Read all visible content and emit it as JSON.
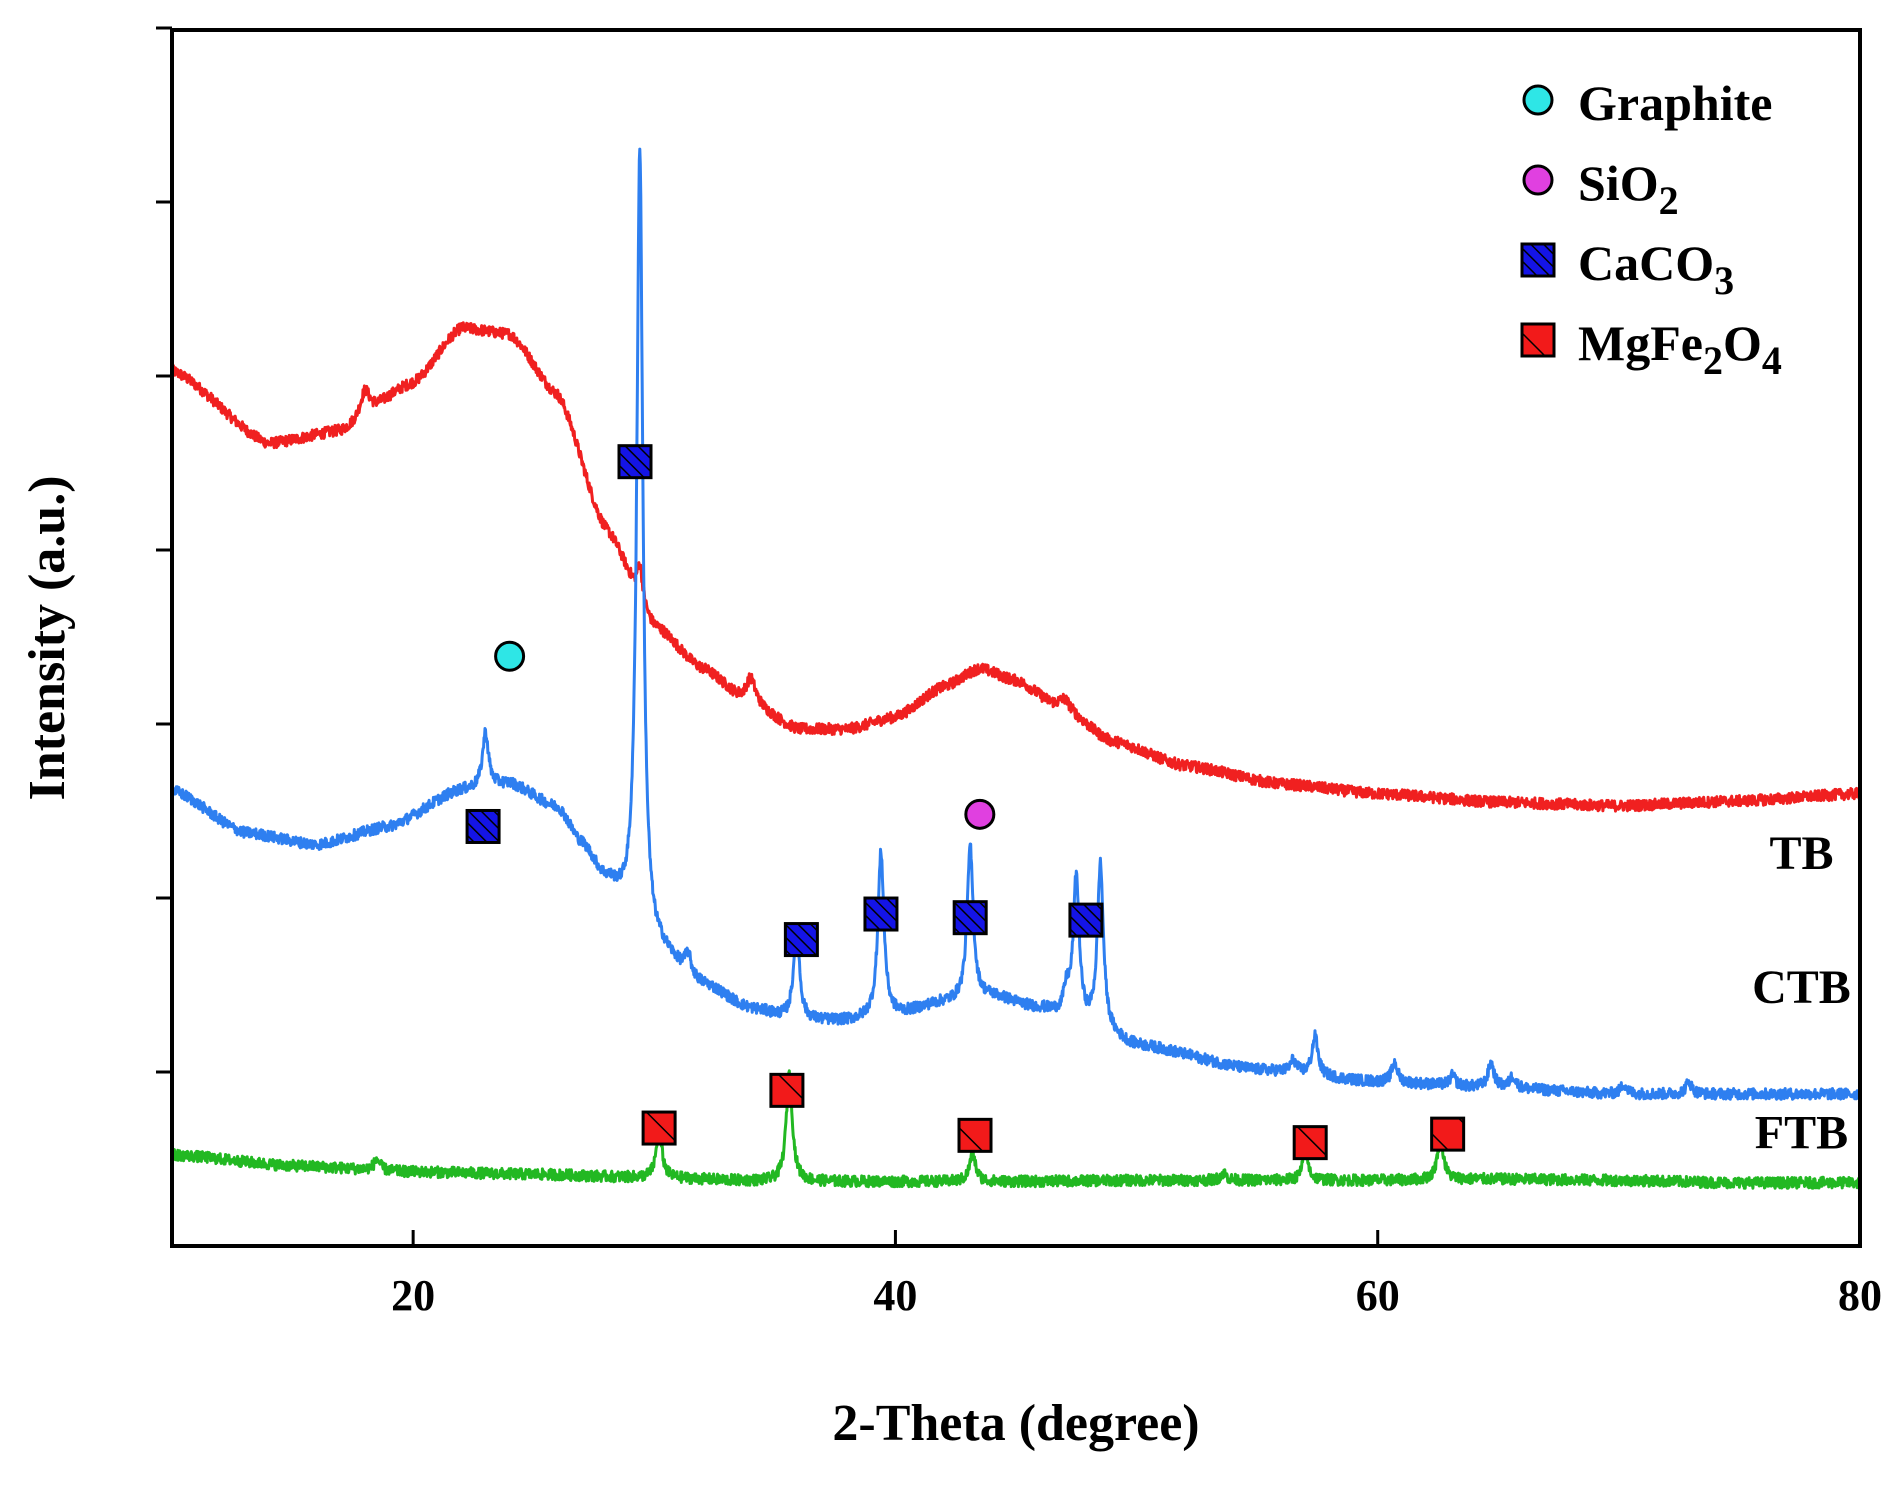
{
  "chart_data": {
    "type": "line",
    "title": "",
    "xlabel": "2-Theta (degree)",
    "ylabel": "Intensity (a.u.)",
    "xlim": [
      10,
      80
    ],
    "ylim": [
      0,
      100
    ],
    "x_ticks": [
      20,
      40,
      60,
      80
    ],
    "y_ticks_labeled": false,
    "grid": false,
    "legend_position": "top-right",
    "legend": [
      {
        "name": "Graphite",
        "marker": "circle",
        "color": "#2EE6E6",
        "sub": "",
        "pre": "Graphite",
        "mid": "",
        "post": ""
      },
      {
        "name": "SiO2",
        "marker": "circle",
        "color": "#E040E0",
        "pre": "SiO",
        "sub1": "2",
        "mid": "",
        "sub2": ""
      },
      {
        "name": "CaCO3",
        "marker": "hatched-square",
        "color": "#1414E6",
        "pre": "CaCO",
        "sub1": "3",
        "mid": "",
        "sub2": ""
      },
      {
        "name": "MgFe2O4",
        "marker": "hatched-square",
        "color": "#E61414",
        "pre": "MgFe",
        "sub1": "2",
        "mid": "O",
        "sub2": "4"
      }
    ],
    "series": [
      {
        "name": "TB",
        "color": "#F02020",
        "baseline": [
          [
            10,
            72
          ],
          [
            14,
            66
          ],
          [
            17,
            67
          ],
          [
            20,
            71
          ],
          [
            22,
            75.5
          ],
          [
            24,
            75
          ],
          [
            26,
            70
          ],
          [
            28,
            59
          ],
          [
            30,
            51
          ],
          [
            32,
            47.5
          ],
          [
            34,
            44.5
          ],
          [
            36,
            42.5
          ],
          [
            38,
            42.5
          ],
          [
            40,
            43.5
          ],
          [
            42,
            46
          ],
          [
            43.5,
            47.5
          ],
          [
            45,
            46.5
          ],
          [
            47,
            44
          ],
          [
            49,
            41.5
          ],
          [
            52,
            39.5
          ],
          [
            56,
            38
          ],
          [
            60,
            37.2
          ],
          [
            65,
            36.5
          ],
          [
            70,
            36.2
          ],
          [
            75,
            36.6
          ],
          [
            80,
            37.2
          ]
        ],
        "peaks": [
          [
            18,
            2.2,
            0.25
          ],
          [
            34,
            2.2,
            0.25
          ],
          [
            29.4,
            3.0,
            0.15
          ],
          [
            47,
            1.0,
            0.3
          ]
        ]
      },
      {
        "name": "CTB",
        "color": "#2E7FF0",
        "baseline": [
          [
            10,
            37.5
          ],
          [
            13,
            34
          ],
          [
            16,
            33
          ],
          [
            19,
            34.5
          ],
          [
            22,
            37.5
          ],
          [
            24,
            38
          ],
          [
            26,
            36
          ],
          [
            27,
            33
          ],
          [
            28,
            30
          ],
          [
            29,
            27.5
          ],
          [
            30,
            24.5
          ],
          [
            32,
            21.5
          ],
          [
            34,
            19.5
          ],
          [
            36,
            18.5
          ],
          [
            38,
            18.5
          ],
          [
            40,
            19
          ],
          [
            42,
            20
          ],
          [
            44,
            20.5
          ],
          [
            46,
            19.5
          ],
          [
            48,
            18
          ],
          [
            50,
            16.5
          ],
          [
            55,
            14.5
          ],
          [
            60,
            13.5
          ],
          [
            65,
            13
          ],
          [
            70,
            12.5
          ],
          [
            75,
            12.5
          ],
          [
            80,
            12.5
          ]
        ],
        "peaks": [
          [
            23.0,
            4.5,
            0.15
          ],
          [
            29.4,
            64,
            0.15
          ],
          [
            31.4,
            1.6,
            0.15
          ],
          [
            35.9,
            7.5,
            0.15
          ],
          [
            39.4,
            13.5,
            0.15
          ],
          [
            43.1,
            12.5,
            0.15
          ],
          [
            47.5,
            11.8,
            0.15
          ],
          [
            48.5,
            13.5,
            0.15
          ],
          [
            47.1,
            2.0,
            0.15
          ],
          [
            56.5,
            1.0,
            0.15
          ],
          [
            57.4,
            3.2,
            0.15
          ],
          [
            60.7,
            1.6,
            0.15
          ],
          [
            63.1,
            0.8,
            0.15
          ],
          [
            64.7,
            2.0,
            0.15
          ],
          [
            65.6,
            1.0,
            0.15
          ],
          [
            70.2,
            0.8,
            0.15
          ],
          [
            72.9,
            1.0,
            0.15
          ]
        ]
      },
      {
        "name": "FTB",
        "color": "#22B822",
        "baseline": [
          [
            10,
            7.5
          ],
          [
            15,
            6.6
          ],
          [
            20,
            6.1
          ],
          [
            25,
            5.9
          ],
          [
            30,
            5.6
          ],
          [
            35,
            5.3
          ],
          [
            40,
            5.3
          ],
          [
            45,
            5.3
          ],
          [
            50,
            5.4
          ],
          [
            55,
            5.4
          ],
          [
            60,
            5.4
          ],
          [
            65,
            5.5
          ],
          [
            70,
            5.4
          ],
          [
            75,
            5.2
          ],
          [
            80,
            5.2
          ]
        ],
        "peaks": [
          [
            18.5,
            0.9,
            0.15
          ],
          [
            30.2,
            3.8,
            0.15
          ],
          [
            35.6,
            9.0,
            0.15
          ],
          [
            43.2,
            2.3,
            0.15
          ],
          [
            53.6,
            0.6,
            0.15
          ],
          [
            57.0,
            2.2,
            0.15
          ],
          [
            62.6,
            3.5,
            0.15
          ]
        ]
      }
    ],
    "series_labels": [
      {
        "series": "TB",
        "text": "TB",
        "x": 75.5,
        "y": 31
      },
      {
        "series": "CTB",
        "text": "CTB",
        "x": 75.5,
        "y": 20
      },
      {
        "series": "FTB",
        "text": "FTB",
        "x": 75.5,
        "y": 8
      }
    ],
    "phase_markers": [
      {
        "phase": "Graphite",
        "x": 24.0,
        "y": 48.5
      },
      {
        "phase": "SiO2",
        "x": 43.5,
        "y": 35.5
      },
      {
        "phase": "CaCO3",
        "x": 29.2,
        "y": 64.5
      },
      {
        "phase": "CaCO3",
        "x": 22.9,
        "y": 34.5
      },
      {
        "phase": "CaCO3",
        "x": 36.1,
        "y": 25.2
      },
      {
        "phase": "CaCO3",
        "x": 39.4,
        "y": 27.3
      },
      {
        "phase": "CaCO3",
        "x": 43.1,
        "y": 27.0
      },
      {
        "phase": "CaCO3",
        "x": 47.9,
        "y": 26.8
      },
      {
        "phase": "MgFe2O4",
        "x": 30.2,
        "y": 9.7
      },
      {
        "phase": "MgFe2O4",
        "x": 35.5,
        "y": 12.8
      },
      {
        "phase": "MgFe2O4",
        "x": 43.3,
        "y": 9.1
      },
      {
        "phase": "MgFe2O4",
        "x": 57.2,
        "y": 8.5
      },
      {
        "phase": "MgFe2O4",
        "x": 62.9,
        "y": 9.2
      }
    ]
  }
}
